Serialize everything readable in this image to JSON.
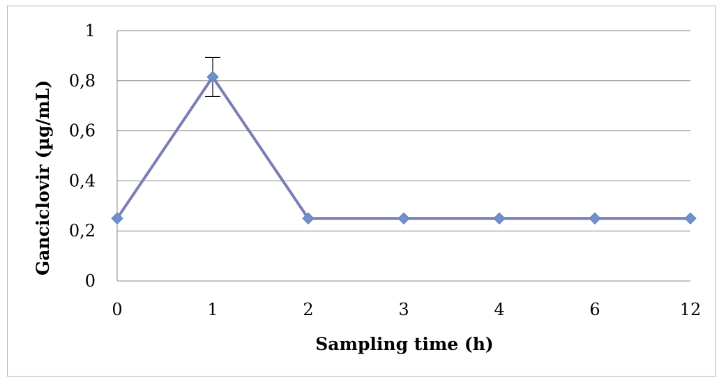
{
  "chart_data": {
    "type": "line",
    "title": "",
    "xlabel": "Sampling time (h)",
    "ylabel": "Ganciclovir (µg/mL)",
    "categories": [
      "0",
      "1",
      "2",
      "3",
      "4",
      "6",
      "12"
    ],
    "series": [
      {
        "values": [
          0.25,
          0.815,
          0.25,
          0.25,
          0.25,
          0.25,
          0.25
        ],
        "error": [
          0,
          0.078,
          0,
          0,
          0,
          0,
          0
        ],
        "color": "#7a7eb3",
        "marker_color": "#6f90c9"
      }
    ],
    "ylim": [
      0,
      1
    ],
    "yticks": [
      0,
      0.2,
      0.4,
      0.6,
      0.8,
      1
    ],
    "ytick_labels": [
      "0",
      "0,2",
      "0,4",
      "0,6",
      "0,8",
      "1"
    ],
    "grid": true,
    "legend": "none"
  }
}
